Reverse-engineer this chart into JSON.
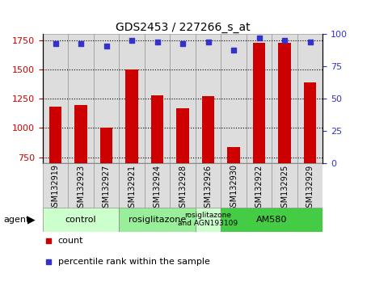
{
  "title": "GDS2453 / 227266_s_at",
  "samples": [
    "GSM132919",
    "GSM132923",
    "GSM132927",
    "GSM132921",
    "GSM132924",
    "GSM132928",
    "GSM132926",
    "GSM132930",
    "GSM132922",
    "GSM132925",
    "GSM132929"
  ],
  "counts": [
    1185,
    1195,
    1005,
    1500,
    1280,
    1170,
    1270,
    840,
    1730,
    1730,
    1390
  ],
  "percentiles": [
    93,
    93,
    91,
    95,
    94,
    93,
    94,
    88,
    97,
    95,
    94
  ],
  "ylim_left": [
    700,
    1800
  ],
  "ylim_right": [
    0,
    100
  ],
  "yticks_left": [
    750,
    1000,
    1250,
    1500,
    1750
  ],
  "yticks_right": [
    0,
    25,
    50,
    75,
    100
  ],
  "bar_color": "#cc0000",
  "dot_color": "#3333cc",
  "groups": [
    {
      "label": "control",
      "start": 0,
      "end": 3,
      "color": "#ccffcc"
    },
    {
      "label": "rosiglitazone",
      "start": 3,
      "end": 6,
      "color": "#99ee99"
    },
    {
      "label": "rosiglitazone\nand AGN193109",
      "start": 6,
      "end": 7,
      "color": "#ccffcc"
    },
    {
      "label": "AM580",
      "start": 7,
      "end": 11,
      "color": "#44cc44"
    }
  ],
  "tick_color_left": "#cc0000",
  "tick_color_right": "#3333cc",
  "grid_color": "#000000",
  "sample_box_color": "#dddddd",
  "sample_box_edge": "#999999"
}
